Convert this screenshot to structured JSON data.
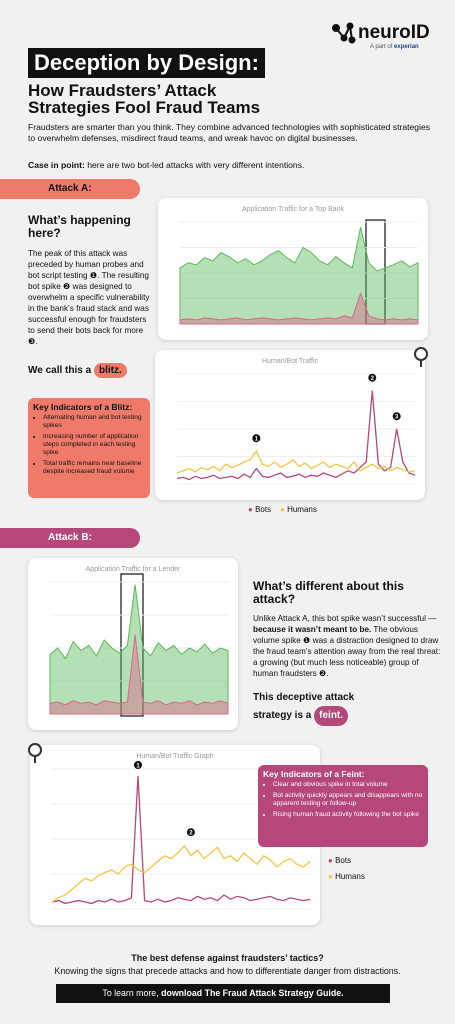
{
  "header": {
    "brand": "neuroID",
    "parent_prefix": "A part of",
    "parent": "experian",
    "title": "Deception by Design:",
    "subtitle": "How Fraudsters’ Attack Strategies Fool Fraud Teams",
    "intro": "Fraudsters are smarter than you think. They combine advanced technologies with sophisticated strategies to overwhelm defenses, misdirect fraud teams, and wreak havoc on digital businesses.",
    "case_lead": "Case in point:",
    "case_text": " here are two bot-led attacks with very different intentions."
  },
  "attack_a": {
    "banner": "Attack A:",
    "heading": "What’s happening here?",
    "body": "The peak of this attack was preceded by human probes and bot script testing ❶. The resulting bot spike ❷ was designed to overwhelm a specific vulnerability in the bank’s fraud stack and was successful enough for fraudsters to send their bots back for more ❸.",
    "call_lead": "We call this a",
    "call_word": "blitz.",
    "indicators_title": "Key Indicators of a Blitz:",
    "indicators": [
      "Alternating human and bot testing spikes",
      "Increasing number of application steps completed in each testing spike",
      "Total traffic remains near baseline despite increased fraud volume"
    ]
  },
  "attack_b": {
    "banner": "Attack B:",
    "heading": "What’s different about this attack?",
    "body_1": "Unlike Attack A, this bot spike wasn’t successful — ",
    "body_bold": "because it wasn’t meant to be.",
    "body_2": " The obvious volume spike ❶ was a distraction designed to draw the fraud team’s attention away from the real threat: a growing (but much less noticeable) group of human fraudsters ❷.",
    "call_lead": "This deceptive attack strategy is a",
    "call_word": "feint.",
    "indicators_title": "Key Indicators of a Feint:",
    "indicators": [
      "Clear and obvious spike in total volume",
      "Bot activity quickly appears and disappears with no apparent testing or follow-up",
      "Rising human fraud activity following the bot spike"
    ]
  },
  "footer": {
    "question": "The best defense against fraudsters’ tactics?",
    "answer": "Knowing the signs that precede attacks and how to differentiate danger from distractions.",
    "cta_lead": "To learn more, ",
    "cta_link": "download The Fraud Attack Strategy Guide."
  },
  "chart_data": [
    {
      "type": "area",
      "title": "Application Traffic for a Top Bank",
      "ylim": [
        0,
        100
      ],
      "series": [
        {
          "color": "#5cb85c",
          "values": [
            55,
            60,
            58,
            65,
            62,
            70,
            66,
            60,
            64,
            58,
            62,
            68,
            72,
            65,
            60,
            75,
            70,
            62,
            58,
            66,
            60,
            55,
            95,
            60,
            52,
            55,
            58,
            62,
            56,
            60
          ]
        },
        {
          "color": "#d9668c",
          "values": [
            4,
            5,
            4,
            6,
            5,
            4,
            5,
            6,
            4,
            5,
            6,
            5,
            4,
            5,
            6,
            5,
            4,
            5,
            6,
            5,
            8,
            6,
            30,
            8,
            5,
            4,
            5,
            4,
            5,
            4
          ]
        }
      ]
    },
    {
      "type": "line",
      "title": "Human/Bot Traffic",
      "ylim": [
        0,
        100
      ],
      "series": [
        {
          "name": "Bots",
          "color": "#b5477a",
          "values": [
            5,
            6,
            4,
            7,
            5,
            6,
            8,
            5,
            6,
            7,
            5,
            9,
            6,
            14,
            7,
            6,
            8,
            10,
            6,
            7,
            9,
            6,
            8,
            7,
            10,
            8,
            6,
            9,
            12,
            10,
            15,
            20,
            85,
            18,
            12,
            15,
            50,
            20,
            10,
            8
          ]
        },
        {
          "name": "Humans",
          "color": "#f5c542",
          "values": [
            10,
            12,
            14,
            11,
            15,
            13,
            16,
            12,
            18,
            15,
            17,
            20,
            22,
            30,
            18,
            16,
            20,
            15,
            18,
            22,
            16,
            19,
            14,
            17,
            20,
            15,
            18,
            16,
            14,
            20,
            12,
            15,
            18,
            14,
            16,
            12,
            15,
            13,
            11,
            12
          ]
        }
      ],
      "annotations": [
        {
          "text": "1",
          "x": 13,
          "y": 38
        },
        {
          "text": "2",
          "x": 32,
          "y": 93
        },
        {
          "text": "3",
          "x": 36,
          "y": 58
        }
      ]
    },
    {
      "type": "area",
      "title": "Application Traffic for a Lender",
      "ylim": [
        0,
        100
      ],
      "series": [
        {
          "color": "#5cb85c",
          "values": [
            45,
            50,
            42,
            55,
            48,
            52,
            44,
            56,
            50,
            46,
            52,
            98,
            50,
            44,
            54,
            48,
            52,
            45,
            50,
            47,
            53,
            46,
            50,
            48
          ]
        },
        {
          "color": "#d9668c",
          "values": [
            8,
            9,
            7,
            10,
            8,
            9,
            7,
            10,
            9,
            8,
            9,
            60,
            9,
            8,
            10,
            7,
            9,
            8,
            10,
            7,
            9,
            8,
            10,
            8
          ]
        }
      ]
    },
    {
      "type": "line",
      "title": "Human/Bot Traffic Graph",
      "ylim": [
        0,
        100
      ],
      "series": [
        {
          "name": "Bots",
          "color": "#b5477a",
          "values": [
            5,
            6,
            4,
            5,
            6,
            5,
            4,
            6,
            5,
            7,
            5,
            6,
            8,
            95,
            6,
            5,
            7,
            5,
            6,
            8,
            7,
            6,
            9,
            7,
            8,
            6,
            10,
            7,
            9,
            8,
            6,
            7,
            8,
            9,
            7,
            6,
            8,
            7,
            6,
            7
          ]
        },
        {
          "name": "Humans",
          "color": "#f5c542",
          "values": [
            5,
            8,
            10,
            14,
            18,
            22,
            20,
            24,
            26,
            28,
            25,
            30,
            32,
            28,
            26,
            30,
            34,
            38,
            36,
            40,
            45,
            38,
            42,
            36,
            40,
            44,
            36,
            38,
            34,
            40,
            36,
            32,
            38,
            35,
            30,
            34,
            36,
            32,
            30,
            34
          ]
        }
      ],
      "annotations": [
        {
          "text": "1",
          "x": 13,
          "y": 100
        },
        {
          "text": "2",
          "x": 21,
          "y": 52
        }
      ]
    }
  ]
}
